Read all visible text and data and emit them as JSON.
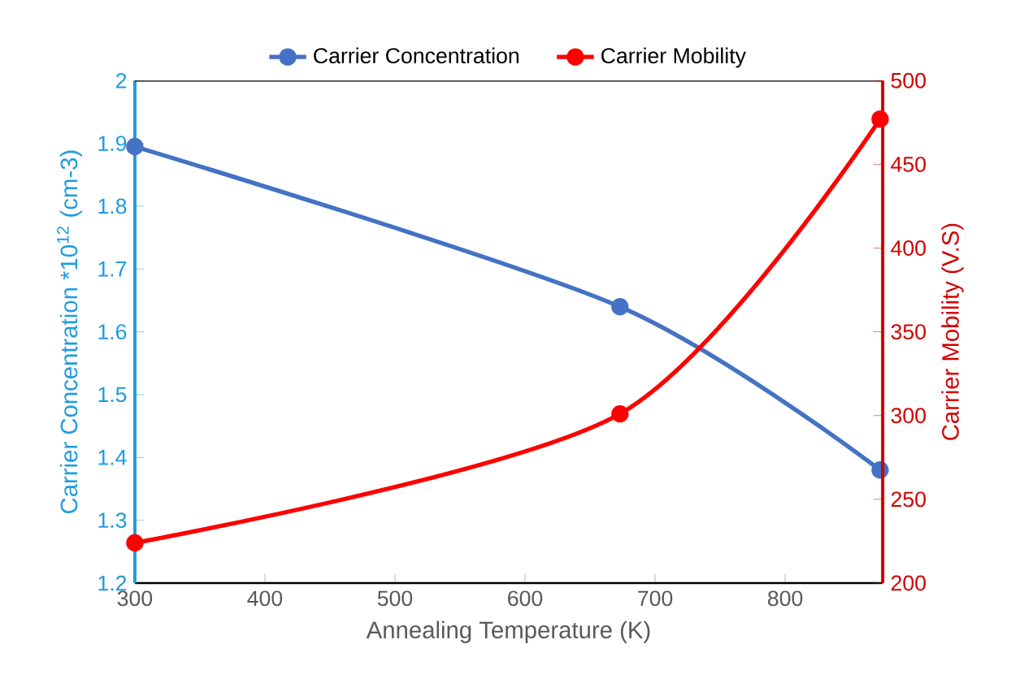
{
  "chart_data": {
    "type": "line",
    "xlabel": "Annealing Temperature (K)",
    "ylabel": "Carrier Concentration *10$^{12}$ (cm-3)",
    "y2label": "Carrier Mobility (V.S)",
    "x": [
      300,
      673,
      873
    ],
    "series": [
      {
        "name": "Carrier Concentration",
        "color": "#4472c4",
        "values": [
          1.895,
          1.64,
          1.38
        ]
      },
      {
        "name": "Carrier Mobility",
        "color": "#ff0000",
        "values": [
          224,
          301,
          477
        ],
        "axis": "y2"
      }
    ],
    "xlim": [
      300,
      875
    ],
    "xticks": [
      300,
      400,
      500,
      600,
      700,
      800
    ],
    "ylim": [
      1.2,
      2
    ],
    "yticks": [
      1.2,
      1.3,
      1.4,
      1.5,
      1.6,
      1.7,
      1.8,
      1.9,
      2
    ],
    "y2lim": [
      200,
      500
    ],
    "y2ticks": [
      200,
      250,
      300,
      350,
      400,
      450,
      500
    ],
    "legend": "top",
    "marker": "circle",
    "line_style": "solid",
    "grid": false
  }
}
